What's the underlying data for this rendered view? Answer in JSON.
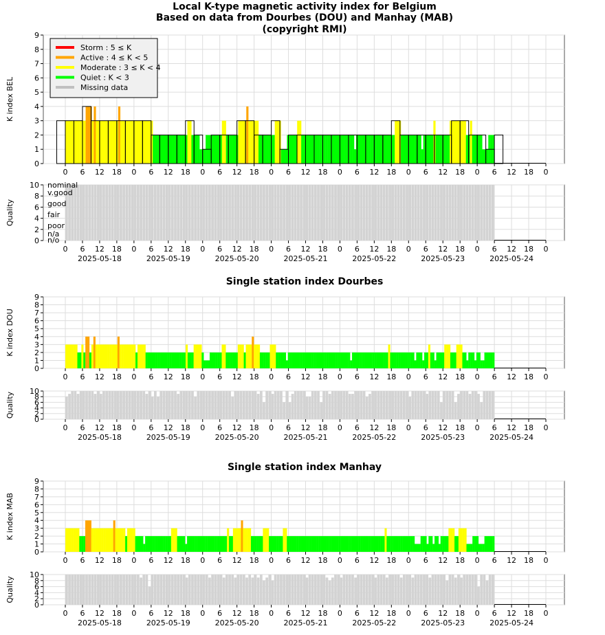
{
  "titles": {
    "line1": "Local K-type magnetic activity index for Belgium",
    "line2": "Based on data from Dourbes (DOU) and Manhay (MAB)",
    "line3": "(copyright RMI)",
    "dou": "Single station index Dourbes",
    "mab": "Single station index Manhay"
  },
  "legend": [
    {
      "label": "Storm : 5 ≤ K",
      "color": "#ff0000"
    },
    {
      "label": "Active : 4 ≤ K < 5",
      "color": "#ffa500"
    },
    {
      "label": "Moderate : 3 ≤ K < 4",
      "color": "#ffff00"
    },
    {
      "label": "Quiet : K < 3",
      "color": "#00ff00"
    },
    {
      "label": "Missing data",
      "color": "#c0c0c0"
    }
  ],
  "quality_labels": [
    "nominal",
    "v.good",
    "good",
    "fair",
    "poor",
    "n/a",
    "n/o"
  ],
  "chart_data": [
    {
      "type": "bar",
      "name": "bel",
      "ylabel": "K index BEL",
      "ylim": [
        0,
        9
      ],
      "x_ticks": [
        "0",
        "6",
        "12",
        "18",
        "0",
        "6",
        "12",
        "18",
        "0",
        "6",
        "12",
        "18",
        "0",
        "6",
        "12",
        "18",
        "0",
        "6",
        "12",
        "18",
        "0",
        "6",
        "12",
        "18",
        "0",
        "6",
        "12",
        "18",
        "0"
      ],
      "k3": [
        3,
        3,
        3,
        4,
        3,
        3,
        3,
        3,
        3,
        3,
        3,
        2,
        2,
        2,
        2,
        3,
        2,
        1,
        2,
        2,
        2,
        3,
        3,
        2,
        2,
        3,
        1,
        2,
        2,
        2,
        2,
        2,
        2,
        2,
        2,
        2,
        2,
        2,
        2,
        3,
        2,
        2,
        2,
        2,
        2,
        2,
        3,
        3,
        2,
        2,
        1,
        2
      ],
      "k_fine": [
        3,
        3,
        3,
        3,
        3,
        3,
        3,
        3,
        3,
        3,
        4,
        4,
        4,
        3,
        4,
        3,
        3,
        3,
        3,
        3,
        3,
        3,
        3,
        3,
        3,
        3,
        4,
        3,
        3,
        3,
        3,
        3,
        3,
        3,
        3,
        3,
        3,
        3,
        3,
        3,
        3,
        3,
        3,
        2,
        2,
        2,
        2,
        2,
        2,
        2,
        2,
        2,
        2,
        2,
        2,
        2,
        2,
        2,
        2,
        2,
        3,
        3,
        2,
        2,
        2,
        2,
        1,
        1,
        1,
        2,
        2,
        2,
        2,
        2,
        2,
        2,
        2,
        3,
        3,
        2,
        2,
        2,
        2,
        2,
        2,
        3,
        3,
        3,
        3,
        4,
        3,
        3,
        3,
        3,
        3,
        2,
        2,
        2,
        2,
        2,
        2,
        2,
        2,
        3,
        3,
        3,
        1,
        1,
        1,
        2,
        2,
        2,
        2,
        2,
        3,
        3,
        2,
        2,
        2,
        2,
        2,
        2,
        2,
        2,
        2,
        2,
        2,
        2,
        2,
        2,
        2,
        2,
        2,
        2,
        2,
        2,
        2,
        2,
        2,
        2,
        2,
        2,
        1,
        2,
        2,
        2,
        2,
        2,
        2,
        2,
        2,
        2,
        2,
        2,
        2,
        2,
        2,
        2,
        2,
        2,
        2,
        2,
        3,
        3,
        3,
        2,
        2,
        2,
        2,
        2,
        2,
        2,
        2,
        2,
        2,
        1,
        2,
        2,
        2,
        2,
        2,
        3,
        2,
        2,
        2,
        2,
        2,
        2,
        2,
        3,
        3,
        3,
        3,
        3,
        3,
        3,
        3,
        2,
        2,
        3,
        2,
        2,
        2,
        2,
        2,
        1,
        1,
        1,
        2,
        2,
        2
      ],
      "quality": "all grey (value 10) until last data interval"
    },
    {
      "type": "bar",
      "name": "dou",
      "ylabel": "K index DOU",
      "ylim": [
        0,
        9
      ],
      "x_ticks": [
        "0",
        "6",
        "12",
        "18",
        "0",
        "6",
        "12",
        "18",
        "0",
        "6",
        "12",
        "18",
        "0",
        "6",
        "12",
        "18",
        "0",
        "6",
        "12",
        "18",
        "0",
        "6",
        "12",
        "18",
        "0",
        "6",
        "12",
        "18",
        "0"
      ],
      "values": [
        3,
        3,
        3,
        3,
        3,
        3,
        2,
        2,
        3,
        2,
        4,
        4,
        2,
        3,
        4,
        3,
        3,
        3,
        3,
        3,
        3,
        3,
        3,
        3,
        3,
        3,
        4,
        3,
        3,
        3,
        3,
        3,
        3,
        3,
        3,
        2,
        3,
        3,
        3,
        3,
        2,
        2,
        2,
        2,
        2,
        2,
        2,
        2,
        2,
        2,
        2,
        2,
        2,
        2,
        2,
        2,
        2,
        2,
        2,
        2,
        3,
        2,
        2,
        2,
        3,
        3,
        3,
        3,
        2,
        1,
        1,
        1,
        2,
        2,
        2,
        2,
        2,
        2,
        3,
        3,
        2,
        2,
        2,
        2,
        2,
        2,
        3,
        3,
        3,
        2,
        3,
        3,
        3,
        4,
        3,
        3,
        3,
        2,
        2,
        2,
        2,
        2,
        3,
        3,
        3,
        2,
        2,
        2,
        2,
        2,
        1,
        2,
        2,
        2,
        2,
        2,
        2,
        2,
        2,
        2,
        2,
        2,
        2,
        2,
        2,
        2,
        2,
        2,
        2,
        2,
        2,
        2,
        2,
        2,
        2,
        2,
        2,
        2,
        2,
        2,
        2,
        2,
        1,
        2,
        2,
        2,
        2,
        2,
        2,
        2,
        2,
        2,
        2,
        2,
        2,
        2,
        2,
        2,
        2,
        2,
        2,
        3,
        2,
        2,
        2,
        2,
        2,
        2,
        2,
        2,
        2,
        2,
        2,
        2,
        1,
        2,
        2,
        2,
        1,
        2,
        2,
        3,
        2,
        2,
        1,
        2,
        2,
        2,
        2,
        3,
        3,
        3,
        2,
        2,
        2,
        3,
        3,
        3,
        2,
        2,
        1,
        2,
        2,
        2,
        1,
        2,
        2,
        1,
        1,
        2,
        2,
        2,
        2,
        2
      ],
      "quality_dips": [
        0.12,
        0.3,
        0.45,
        0.58,
        0.66,
        0.74
      ]
    },
    {
      "type": "bar",
      "name": "mab",
      "ylabel": "K index MAB",
      "ylim": [
        0,
        9
      ],
      "x_ticks": [
        "0",
        "6",
        "12",
        "18",
        "0",
        "6",
        "12",
        "18",
        "0",
        "6",
        "12",
        "18",
        "0",
        "6",
        "12",
        "18",
        "0",
        "6",
        "12",
        "18",
        "0",
        "6",
        "12",
        "18",
        "0",
        "6",
        "12",
        "18",
        "0"
      ],
      "values": [
        3,
        3,
        3,
        3,
        3,
        3,
        3,
        2,
        2,
        2,
        4,
        4,
        4,
        3,
        3,
        3,
        3,
        3,
        3,
        3,
        3,
        3,
        3,
        3,
        4,
        3,
        3,
        3,
        3,
        3,
        2,
        3,
        3,
        3,
        3,
        2,
        2,
        2,
        2,
        1,
        2,
        2,
        2,
        2,
        2,
        2,
        2,
        2,
        2,
        2,
        2,
        2,
        2,
        3,
        3,
        3,
        2,
        2,
        2,
        2,
        1,
        2,
        2,
        2,
        2,
        2,
        2,
        2,
        2,
        2,
        2,
        2,
        2,
        2,
        2,
        2,
        2,
        2,
        2,
        2,
        2,
        3,
        2,
        2,
        3,
        3,
        3,
        3,
        4,
        3,
        3,
        3,
        3,
        2,
        2,
        2,
        2,
        2,
        2,
        3,
        3,
        3,
        2,
        2,
        2,
        2,
        2,
        2,
        2,
        3,
        3,
        2,
        2,
        2,
        2,
        2,
        2,
        2,
        2,
        2,
        2,
        2,
        2,
        2,
        2,
        2,
        2,
        2,
        2,
        2,
        2,
        2,
        2,
        2,
        2,
        2,
        2,
        2,
        2,
        2,
        2,
        2,
        2,
        2,
        2,
        2,
        2,
        2,
        2,
        2,
        2,
        2,
        2,
        2,
        2,
        2,
        2,
        2,
        2,
        2,
        3,
        2,
        2,
        2,
        2,
        2,
        2,
        2,
        2,
        2,
        2,
        2,
        2,
        2,
        2,
        1,
        1,
        1,
        2,
        2,
        2,
        1,
        2,
        2,
        1,
        2,
        2,
        1,
        2,
        2,
        2,
        2,
        3,
        3,
        3,
        2,
        2,
        3,
        3,
        3,
        3,
        1,
        1,
        1,
        2,
        2,
        2,
        1,
        1,
        1,
        2,
        2,
        2,
        2,
        2
      ]
    }
  ],
  "date_labels": [
    "2025-05-18",
    "2025-05-19",
    "2025-05-20",
    "2025-05-21",
    "2025-05-22",
    "2025-05-23",
    "2025-05-24"
  ]
}
